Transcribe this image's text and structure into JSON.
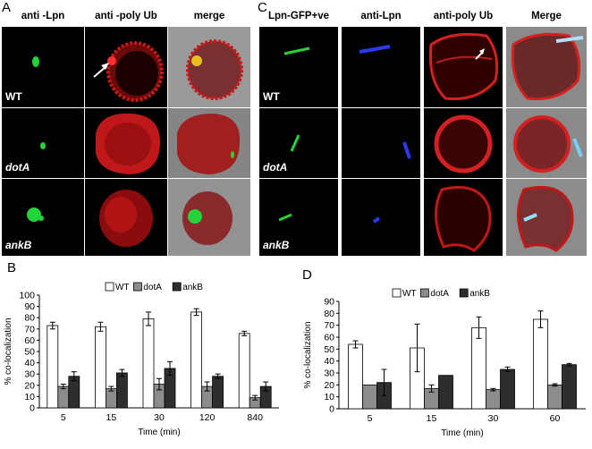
{
  "panels": {
    "A": "A",
    "B": "B",
    "C": "C",
    "D": "D"
  },
  "panel_a": {
    "columns": [
      "anti -Lpn",
      "anti -poly Ub",
      "merge"
    ],
    "rows": [
      "WT",
      "dotA",
      "ankB"
    ]
  },
  "panel_c": {
    "columns": [
      "Lpn-GFP+ve",
      "anti-Lpn",
      "anti-poly Ub",
      "Merge"
    ],
    "rows": [
      "WT",
      "dotA",
      "ankB"
    ]
  },
  "colors": {
    "wt": "#ffffff",
    "dotA": "#8c8c8c",
    "ankB": "#2e2e2e",
    "red": "#d42020",
    "green": "#22d43a",
    "blue": "#2a3cf0"
  },
  "chart_data": [
    {
      "type": "bar",
      "panel": "B",
      "categories": [
        "5",
        "15",
        "30",
        "120",
        "840"
      ],
      "series": [
        {
          "name": "WT",
          "values": [
            73,
            72,
            79,
            85,
            66
          ],
          "errors": [
            3,
            4,
            6,
            3,
            2
          ]
        },
        {
          "name": "dotA",
          "values": [
            19,
            17,
            21,
            19,
            9
          ],
          "errors": [
            2,
            2,
            5,
            4,
            2
          ]
        },
        {
          "name": "ankB",
          "values": [
            28,
            31,
            35,
            28,
            19
          ],
          "errors": [
            4,
            3,
            6,
            2,
            4
          ]
        }
      ],
      "xlabel": "Time (min)",
      "ylabel": "% co-localization",
      "ylim": [
        0,
        100
      ],
      "yticks": [
        0,
        10,
        20,
        30,
        40,
        50,
        60,
        70,
        80,
        90,
        100
      ],
      "legend_position": "top"
    },
    {
      "type": "bar",
      "panel": "D",
      "categories": [
        "5",
        "15",
        "30",
        "60"
      ],
      "series": [
        {
          "name": "WT",
          "values": [
            54,
            51,
            68,
            75
          ],
          "errors": [
            3,
            20,
            9,
            7
          ]
        },
        {
          "name": "dotA",
          "values": [
            20,
            17,
            16,
            20
          ],
          "errors": [
            0,
            3,
            1,
            1
          ]
        },
        {
          "name": "ankB",
          "values": [
            22,
            28,
            33,
            37
          ],
          "errors": [
            11,
            0,
            2,
            1
          ]
        }
      ],
      "xlabel": "Time (min)",
      "ylabel": "% co-localization",
      "ylim": [
        0,
        90
      ],
      "yticks": [
        0,
        10,
        20,
        30,
        40,
        50,
        60,
        70,
        80,
        90
      ],
      "legend_position": "top"
    }
  ]
}
